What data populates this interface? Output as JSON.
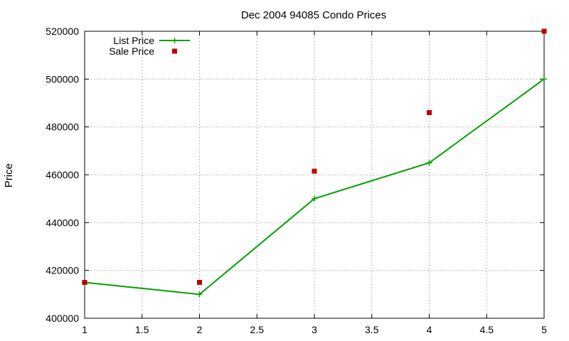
{
  "chart_data": {
    "type": "line",
    "title": "Dec 2004 94085 Condo Prices",
    "xlabel": "",
    "ylabel": "Price",
    "xlim": [
      1,
      5
    ],
    "ylim": [
      400000,
      520000
    ],
    "x_ticks": [
      1,
      1.5,
      2,
      2.5,
      3,
      3.5,
      4,
      4.5,
      5
    ],
    "y_ticks": [
      400000,
      420000,
      440000,
      460000,
      480000,
      500000,
      520000
    ],
    "x_tick_labels": [
      "1",
      "1.5",
      "2",
      "2.5",
      "3",
      "3.5",
      "4",
      "4.5",
      "5"
    ],
    "y_tick_labels": [
      "400000",
      "420000",
      "440000",
      "460000",
      "480000",
      "500000",
      "520000"
    ],
    "grid": true,
    "legend_position": "top-left",
    "series": [
      {
        "name": "List Price",
        "style": "linespoints",
        "marker": "plus",
        "color": "#00a000",
        "x": [
          1,
          2,
          3,
          4,
          5
        ],
        "y": [
          415000,
          410000,
          450000,
          465000,
          500000
        ]
      },
      {
        "name": "Sale Price",
        "style": "points",
        "marker": "square",
        "color": "#c00000",
        "x": [
          1,
          2,
          3,
          4,
          5
        ],
        "y": [
          415000,
          415000,
          461500,
          486000,
          520000
        ]
      }
    ]
  }
}
